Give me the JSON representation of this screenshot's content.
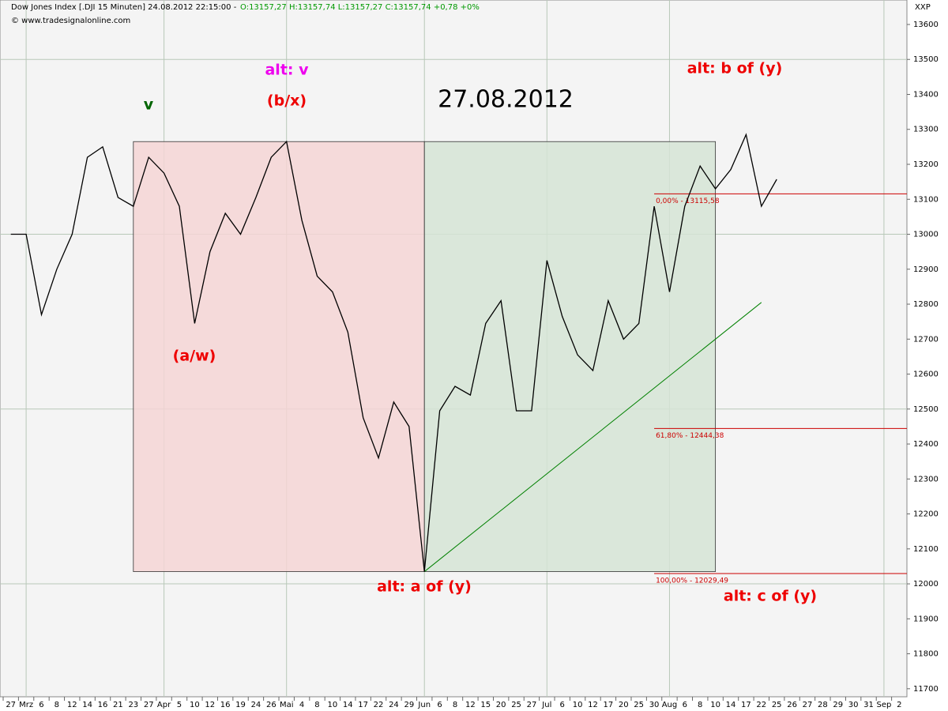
{
  "chart_data": {
    "type": "line",
    "title": "Dow Jones Index [.DJI 15 Minuten] 24.08.2012 22:15:00 -",
    "quote": "O:13157,27 H:13157,74 L:13157,27 C:13157,74 +0,78 +0%",
    "quote_color": "#009900",
    "source": "© www.tradesignalonline.com",
    "symbol_code": "XXP",
    "categories": [
      "27",
      "Mrz",
      "6",
      "8",
      "12",
      "14",
      "16",
      "21",
      "23",
      "27",
      "Apr",
      "5",
      "10",
      "12",
      "16",
      "19",
      "24",
      "26",
      "Mai",
      "4",
      "8",
      "10",
      "14",
      "17",
      "22",
      "24",
      "29",
      "Jun",
      "6",
      "8",
      "12",
      "15",
      "20",
      "25",
      "27",
      "Jul",
      "6",
      "10",
      "12",
      "17",
      "20",
      "25",
      "30",
      "Aug",
      "6",
      "8",
      "10",
      "14",
      "17",
      "22",
      "25",
      "26",
      "27",
      "28",
      "29",
      "30",
      "31",
      "Sep",
      "2"
    ],
    "values": [
      13000,
      13000,
      12770,
      12900,
      13000,
      13220,
      13250,
      13105,
      13080,
      13220,
      13175,
      13080,
      12745,
      12950,
      13060,
      13000,
      13105,
      13220,
      13265,
      13040,
      12880,
      12835,
      12720,
      12475,
      12360,
      12520,
      12450,
      12035,
      12495,
      12565,
      12540,
      12745,
      12810,
      12495,
      12495,
      12925,
      12765,
      12655,
      12610,
      12810,
      12700,
      12745,
      13080,
      12835,
      13080,
      13195,
      13130,
      13185,
      13285,
      13080,
      13157,
      null,
      null,
      null,
      null,
      null,
      null,
      null,
      null
    ],
    "color": "#000000",
    "ylim": [
      11677,
      13670
    ],
    "yticks": [
      11700,
      11800,
      11900,
      12000,
      12100,
      12200,
      12300,
      12400,
      12500,
      12600,
      12700,
      12800,
      12900,
      13000,
      13100,
      13200,
      13300,
      13400,
      13500,
      13600
    ],
    "grid": true,
    "boxes": [
      {
        "from": 8,
        "to": 27,
        "low": 12035,
        "high": 13265,
        "color": "#f5d5d5"
      },
      {
        "from": 27,
        "to": 46,
        "low": 12035,
        "high": 13265,
        "color": "#d5e4d5"
      }
    ],
    "trendline": {
      "from": 27,
      "to": 49,
      "start": 12035,
      "end": 12805,
      "color": "#008000"
    },
    "levels": [
      {
        "value": 13115.58,
        "label": "0,00% - 13115,58",
        "from": 42
      },
      {
        "value": 12444.38,
        "label": "61,80% - 12444,38",
        "from": 42
      },
      {
        "value": 12029.49,
        "label": "100,00% - 12029,49",
        "from": 42
      }
    ],
    "level_color": "#cc0000",
    "annotations": [
      {
        "text": "v",
        "color": "#006400"
      },
      {
        "text": "alt: v",
        "color": "#ee00ee"
      },
      {
        "text": "(b/x)",
        "color": "#ee0000"
      },
      {
        "text": "(a/w)",
        "color": "#ee0000"
      },
      {
        "text": "27.08.2012",
        "color": "#000000"
      },
      {
        "text": "alt: b of (y)",
        "color": "#ee0000"
      },
      {
        "text": "alt: a of (y)",
        "color": "#ee0000"
      },
      {
        "text": "alt: c of (y)",
        "color": "#ee0000"
      }
    ]
  }
}
